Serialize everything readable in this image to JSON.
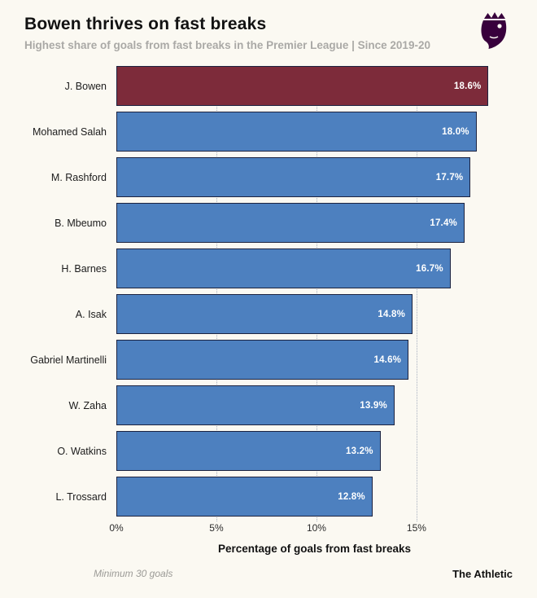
{
  "header": {
    "title": "Bowen thrives on fast breaks",
    "subtitle": "Highest share of goals from fast breaks in the Premier League | Since 2019-20"
  },
  "chart_data": {
    "type": "bar",
    "orientation": "horizontal",
    "title": "Bowen thrives on fast breaks",
    "subtitle": "Highest share of goals from fast breaks in the Premier League | Since 2019-20",
    "categories": [
      "J. Bowen",
      "Mohamed Salah",
      "M. Rashford",
      "B. Mbeumo",
      "H. Barnes",
      "A. Isak",
      "Gabriel Martinelli",
      "W. Zaha",
      "O. Watkins",
      "L. Trossard"
    ],
    "values": [
      18.6,
      18.0,
      17.7,
      17.4,
      16.7,
      14.8,
      14.6,
      13.9,
      13.2,
      12.8
    ],
    "value_labels": [
      "18.6%",
      "18.0%",
      "17.7%",
      "17.4%",
      "16.7%",
      "14.8%",
      "14.6%",
      "13.9%",
      "13.2%",
      "12.8%"
    ],
    "highlight_index": 0,
    "xlabel": "Percentage of goals from fast breaks",
    "xlim": [
      0,
      19.8
    ],
    "xticks": [
      0,
      5,
      10,
      15
    ],
    "xtick_labels": [
      "0%",
      "5%",
      "10%",
      "15%"
    ],
    "grid": "dotted-vertical",
    "legend": "none",
    "colors": {
      "bar": "#4d80bf",
      "highlight": "#7d2b3a",
      "border": "#1c2340",
      "value_text": "#ffffff",
      "background": "#fbf9f2"
    }
  },
  "footer": {
    "note": "Minimum 30 goals",
    "brand": "The Athletic"
  },
  "icons": {
    "premier_league_logo": "premier-league-lion-crest"
  }
}
